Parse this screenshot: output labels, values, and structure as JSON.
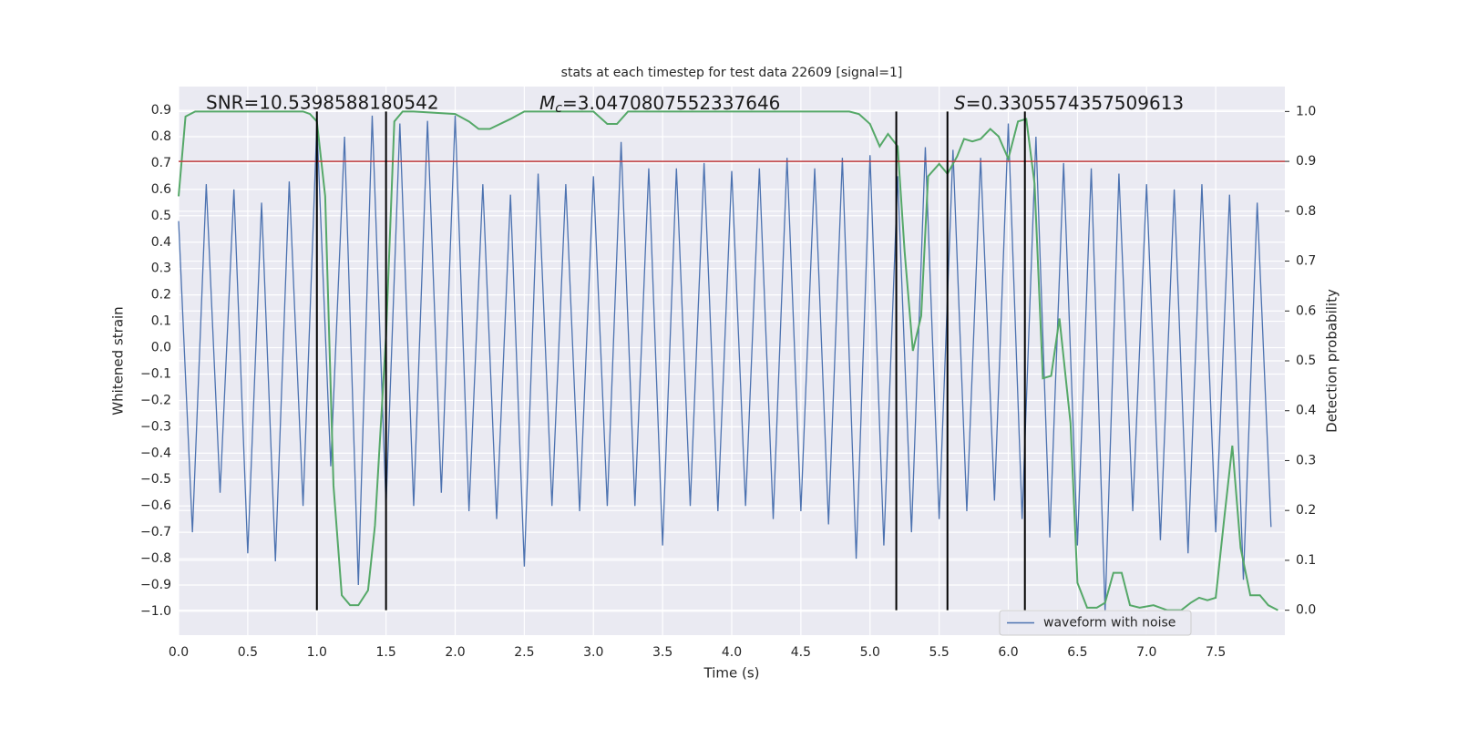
{
  "chart_data": {
    "type": "line",
    "title": "stats at each timestep for test data 22609 [signal=1]",
    "xlabel": "Time (s)",
    "ylabel": "Whitened strain",
    "y2label": "Detection probability",
    "xlim": [
      0,
      8
    ],
    "ylim": [
      -1.09,
      0.99
    ],
    "y2lim": [
      -0.05,
      1.05
    ],
    "xticks": [
      {
        "value": 0,
        "label": "0.0"
      },
      0.5,
      {
        "value": 1,
        "label": "1.0"
      },
      1.5,
      {
        "value": 2,
        "label": "2.0"
      },
      2.5,
      {
        "value": 3,
        "label": "3.0"
      },
      3.5,
      {
        "value": 4,
        "label": "4.0"
      },
      4.5,
      {
        "value": 5,
        "label": "5.0"
      },
      5.5,
      {
        "value": 6,
        "label": "6.0"
      },
      6.5,
      {
        "value": 7,
        "label": "7.0"
      },
      7.5
    ],
    "yticks": [
      0.9,
      0.8,
      0.7,
      0.6,
      0.5,
      0.4,
      0.3,
      0.2,
      0.1,
      {
        "value": 0,
        "label": "0.0"
      },
      {
        "value": -0.1,
        "label": "−0.1"
      },
      {
        "value": -0.2,
        "label": "−0.2"
      },
      {
        "value": -0.3,
        "label": "−0.3"
      },
      {
        "value": -0.4,
        "label": "−0.4"
      },
      {
        "value": -0.5,
        "label": "−0.5"
      },
      {
        "value": -0.6,
        "label": "−0.6"
      },
      {
        "value": -0.7,
        "label": "−0.7"
      },
      {
        "value": -0.8,
        "label": "−0.8"
      },
      {
        "value": -0.9,
        "label": "−0.9"
      },
      {
        "value": -1,
        "label": "−1.0"
      }
    ],
    "y2ticks": [
      {
        "value": 0,
        "label": "0.0"
      },
      0.1,
      0.2,
      0.3,
      0.4,
      0.5,
      0.6,
      0.7,
      0.8,
      0.9,
      {
        "value": 1,
        "label": "1.0"
      }
    ],
    "grid": true,
    "legend": "lower right",
    "series": [
      {
        "name": "waveform with noise",
        "color": "#4c72b0",
        "x": [
          0.0,
          0.1,
          0.2,
          0.3,
          0.4,
          0.5,
          0.6,
          0.7,
          0.8,
          0.9,
          1.0,
          1.1,
          1.2,
          1.3,
          1.4,
          1.5,
          1.6,
          1.7,
          1.8,
          1.9,
          2.0,
          2.1,
          2.2,
          2.3,
          2.4,
          2.5,
          2.6,
          2.7,
          2.8,
          2.9,
          3.0,
          3.1,
          3.2,
          3.3,
          3.4,
          3.5,
          3.6,
          3.7,
          3.8,
          3.9,
          4.0,
          4.1,
          4.2,
          4.3,
          4.4,
          4.5,
          4.6,
          4.7,
          4.8,
          4.9,
          5.0,
          5.1,
          5.2,
          5.3,
          5.4,
          5.5,
          5.6,
          5.7,
          5.8,
          5.9,
          6.0,
          6.1,
          6.2,
          6.3,
          6.4,
          6.5,
          6.6,
          6.7,
          6.8,
          6.9,
          7.0,
          7.1,
          7.2,
          7.3,
          7.4,
          7.5,
          7.6,
          7.7,
          7.8,
          7.9
        ],
        "values": [
          0.48,
          -0.7,
          0.62,
          -0.55,
          0.6,
          -0.78,
          0.55,
          -0.81,
          0.63,
          -0.6,
          0.85,
          -0.45,
          0.8,
          -0.9,
          0.88,
          -0.6,
          0.85,
          -0.6,
          0.86,
          -0.55,
          0.88,
          -0.62,
          0.62,
          -0.65,
          0.58,
          -0.83,
          0.66,
          -0.6,
          0.62,
          -0.62,
          0.65,
          -0.6,
          0.78,
          -0.6,
          0.68,
          -0.75,
          0.68,
          -0.6,
          0.7,
          -0.62,
          0.67,
          -0.6,
          0.68,
          -0.65,
          0.72,
          -0.62,
          0.68,
          -0.67,
          0.72,
          -0.8,
          0.73,
          -0.75,
          0.65,
          -0.7,
          0.76,
          -0.65,
          0.75,
          -0.62,
          0.72,
          -0.58,
          0.85,
          -0.65,
          0.8,
          -0.72,
          0.7,
          -0.75,
          0.68,
          -1.0,
          0.66,
          -0.62,
          0.62,
          -0.73,
          0.6,
          -0.78,
          0.62,
          -0.7,
          0.58,
          -0.88,
          0.55,
          -0.68
        ]
      },
      {
        "color": "#55a868",
        "axis": "y2",
        "x": [
          0,
          0.05,
          0.12,
          0.3,
          0.9,
          0.95,
          1.0,
          1.06,
          1.12,
          1.18,
          1.24,
          1.3,
          1.37,
          1.42,
          1.5,
          1.56,
          1.62,
          1.7,
          2.0,
          2.1,
          2.17,
          2.25,
          2.4,
          2.5,
          3.0,
          3.1,
          3.17,
          3.25,
          4.0,
          4.85,
          4.92,
          5.0,
          5.07,
          5.13,
          5.2,
          5.25,
          5.31,
          5.37,
          5.42,
          5.5,
          5.56,
          5.63,
          5.68,
          5.74,
          5.8,
          5.87,
          5.93,
          6.0,
          6.07,
          6.13,
          6.19,
          6.25,
          6.31,
          6.37,
          6.45,
          6.5,
          6.57,
          6.64,
          6.7,
          6.76,
          6.82,
          6.88,
          6.95,
          7.05,
          7.15,
          7.25,
          7.32,
          7.38,
          7.44,
          7.5,
          7.56,
          7.62,
          7.68,
          7.75,
          7.82,
          7.88,
          7.95
        ],
        "values": [
          0.83,
          0.99,
          1.0,
          1.0,
          1.0,
          0.995,
          0.98,
          0.83,
          0.25,
          0.03,
          0.01,
          0.01,
          0.04,
          0.17,
          0.55,
          0.98,
          1.0,
          1.0,
          0.995,
          0.98,
          0.965,
          0.965,
          0.985,
          1.0,
          1.0,
          0.975,
          0.975,
          1.0,
          1.0,
          1.0,
          0.995,
          0.975,
          0.93,
          0.955,
          0.93,
          0.72,
          0.52,
          0.59,
          0.87,
          0.895,
          0.875,
          0.91,
          0.945,
          0.94,
          0.945,
          0.965,
          0.95,
          0.905,
          0.98,
          0.985,
          0.855,
          0.465,
          0.47,
          0.585,
          0.375,
          0.055,
          0.005,
          0.005,
          0.015,
          0.075,
          0.075,
          0.01,
          0.005,
          0.01,
          0.0,
          0.0,
          0.015,
          0.025,
          0.02,
          0.025,
          0.18,
          0.33,
          0.125,
          0.03,
          0.03,
          0.01,
          0.0
        ]
      }
    ],
    "hline": {
      "y": 0.9,
      "axis": "y2",
      "color": "#c03d3e"
    },
    "vlines": {
      "x": [
        1.0,
        1.5,
        5.19,
        5.56,
        6.12
      ],
      "ymin": 0,
      "ymax": 1,
      "axis": "y2",
      "color": "#000000"
    },
    "annotations": [
      {
        "text": "SNR=10.5398588180542"
      },
      {
        "symbol": "M",
        "subscript": "c",
        "text": "=3.0470807552337646"
      },
      {
        "symbol": "S",
        "text": "=0.3305574357509613"
      }
    ]
  }
}
